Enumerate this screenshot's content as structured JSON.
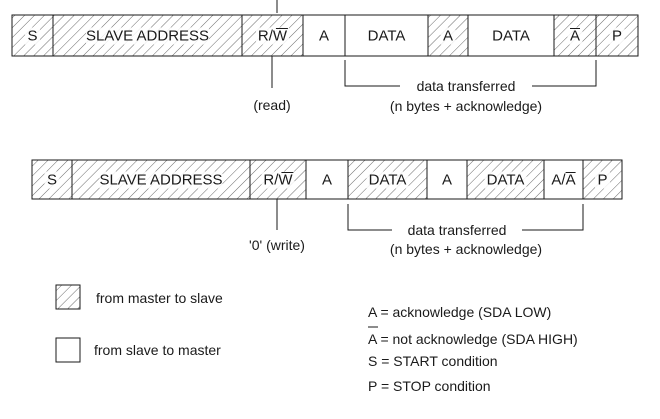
{
  "frame_read": {
    "fields": [
      {
        "label": "S",
        "hatched": true
      },
      {
        "label": "SLAVE ADDRESS",
        "hatched": true
      },
      {
        "label": "R/W",
        "hatched": true,
        "overline_part": "W"
      },
      {
        "label": "A",
        "hatched": false
      },
      {
        "label": "DATA",
        "hatched": false
      },
      {
        "label": "A",
        "hatched": true
      },
      {
        "label": "DATA",
        "hatched": false
      },
      {
        "label": "A",
        "hatched": true,
        "overline_part": "A"
      },
      {
        "label": "P",
        "hatched": true
      }
    ],
    "rw_note": "(read)",
    "transfer_line1": "data transferred",
    "transfer_line2": "(n bytes + acknowledge)"
  },
  "frame_write": {
    "fields": [
      {
        "label": "S",
        "hatched": true
      },
      {
        "label": "SLAVE ADDRESS",
        "hatched": true
      },
      {
        "label": "R/W",
        "hatched": true,
        "overline_part": "W"
      },
      {
        "label": "A",
        "hatched": false
      },
      {
        "label": "DATA",
        "hatched": true
      },
      {
        "label": "A",
        "hatched": false
      },
      {
        "label": "DATA",
        "hatched": true
      },
      {
        "label": "A/A",
        "hatched": false,
        "overline_part": "second-A"
      },
      {
        "label": "P",
        "hatched": true
      }
    ],
    "rw_note": "'0' (write)",
    "transfer_line1": "data transferred",
    "transfer_line2": "(n bytes + acknowledge)"
  },
  "legend": {
    "master_to_slave": "from master to slave",
    "slave_to_master": "from slave to master"
  },
  "definitions": [
    "A = acknowledge (SDA LOW)",
    "A = not acknowledge (SDA HIGH)",
    "S = START condition",
    "P = STOP condition"
  ],
  "colors": {
    "stroke": "#1a1a1a",
    "hatch": "#555555",
    "background": "#ffffff"
  }
}
